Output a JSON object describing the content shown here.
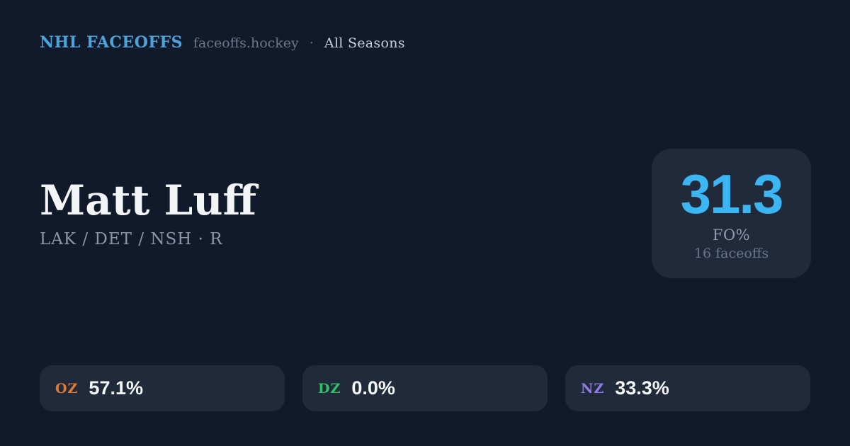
{
  "header": {
    "brand": "NHL FACEOFFS",
    "domain": "faceoffs.hockey",
    "separator": "·",
    "season": "All Seasons"
  },
  "player": {
    "name": "Matt Luff",
    "teams": "LAK / DET / NSH · R"
  },
  "summary": {
    "value": "31.3",
    "label": "FO%",
    "sub": "16 faceoffs"
  },
  "zones": [
    {
      "code": "OZ",
      "value": "57.1%",
      "color": "#e07a30"
    },
    {
      "code": "DZ",
      "value": "0.0%",
      "color": "#30c068"
    },
    {
      "code": "NZ",
      "value": "33.3%",
      "color": "#8f7be8"
    }
  ],
  "colors": {
    "background": "#111a2a",
    "card_background": "#202a3b",
    "brand_blue": "#4aa3db",
    "stat_blue": "#3cb5f3",
    "text_primary": "#f2f4f6",
    "text_muted": "#8b96a8"
  }
}
